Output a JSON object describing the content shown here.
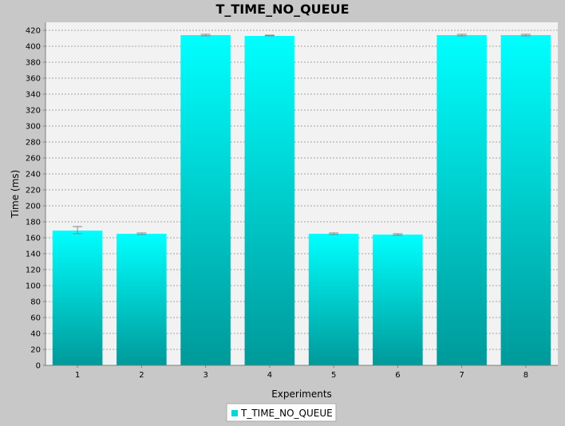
{
  "chart_data": {
    "type": "bar",
    "title": "T_TIME_NO_QUEUE",
    "xlabel": "Experiments",
    "ylabel": "Time (ms)",
    "categories": [
      "1",
      "2",
      "3",
      "4",
      "5",
      "6",
      "7",
      "8"
    ],
    "series": [
      {
        "name": "T_TIME_NO_QUEUE",
        "values": [
          169,
          165,
          414,
          413,
          165,
          164,
          414,
          414
        ],
        "error_low": [
          165,
          164,
          413,
          413,
          164,
          163,
          413,
          413
        ],
        "error_high": [
          174,
          166,
          415,
          414,
          166,
          165,
          415,
          415
        ]
      }
    ],
    "ylim": [
      0,
      430
    ],
    "yticks": [
      0,
      20,
      40,
      60,
      80,
      100,
      120,
      140,
      160,
      180,
      200,
      220,
      240,
      260,
      280,
      300,
      320,
      340,
      360,
      380,
      400,
      420
    ],
    "grid": true,
    "legend": "bottom-center",
    "colors": {
      "bar_top": "#00ffff",
      "bar_bottom": "#009999",
      "error_bar": "#888888",
      "plot_background": "#f2f2f2",
      "page_background": "#c8c8c8",
      "legend_swatch": "#00d6d6"
    }
  }
}
